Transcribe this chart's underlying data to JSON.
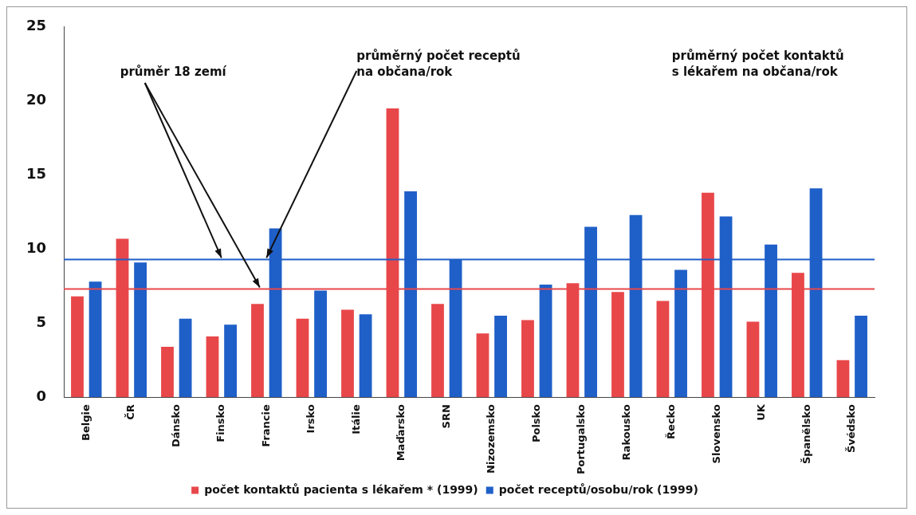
{
  "chart_data": {
    "type": "bar",
    "categories": [
      "Belgie",
      "ČR",
      "Dánsko",
      "Finsko",
      "Francie",
      "Irsko",
      "Itálie",
      "Maďarsko",
      "SRN",
      "Nizozemsko",
      "Polsko",
      "Portugalsko",
      "Rakousko",
      "Řecko",
      "Slovensko",
      "UK",
      "Španělsko",
      "Švédsko"
    ],
    "series": [
      {
        "name": "počet kontaktů pacienta s lékařem * (1999)",
        "color": "#e8474a",
        "values": [
          6.8,
          10.7,
          3.4,
          4.1,
          6.3,
          5.3,
          5.9,
          19.5,
          6.3,
          4.3,
          5.2,
          7.7,
          7.1,
          6.5,
          13.8,
          5.1,
          8.4,
          2.5
        ]
      },
      {
        "name": "počet receptů/osobu/rok (1999)",
        "color": "#1f5fc8",
        "values": [
          7.8,
          9.1,
          5.3,
          4.9,
          11.4,
          7.2,
          5.6,
          13.9,
          9.3,
          5.5,
          7.6,
          11.5,
          12.3,
          8.6,
          12.2,
          10.3,
          14.1,
          5.5
        ]
      }
    ],
    "ylim": [
      0,
      25
    ],
    "yticks": [
      0,
      5,
      10,
      15,
      20,
      25
    ],
    "grid": false,
    "legend": "bottom",
    "ref_lines": [
      {
        "axis": "y",
        "value": 9.3,
        "color": "#1f5fc8"
      },
      {
        "axis": "y",
        "value": 7.3,
        "color": "#e8474a"
      }
    ],
    "annotations": [
      {
        "text": "průměr 18 zemí",
        "x": "Finsko",
        "y": 9.3
      },
      {
        "text": "průměrný počet receptů\nna občana/rok",
        "x": "Francie",
        "y": 9.3
      },
      "průměrný počet kontaktů\ns lékařem na občana/rok"
    ]
  }
}
